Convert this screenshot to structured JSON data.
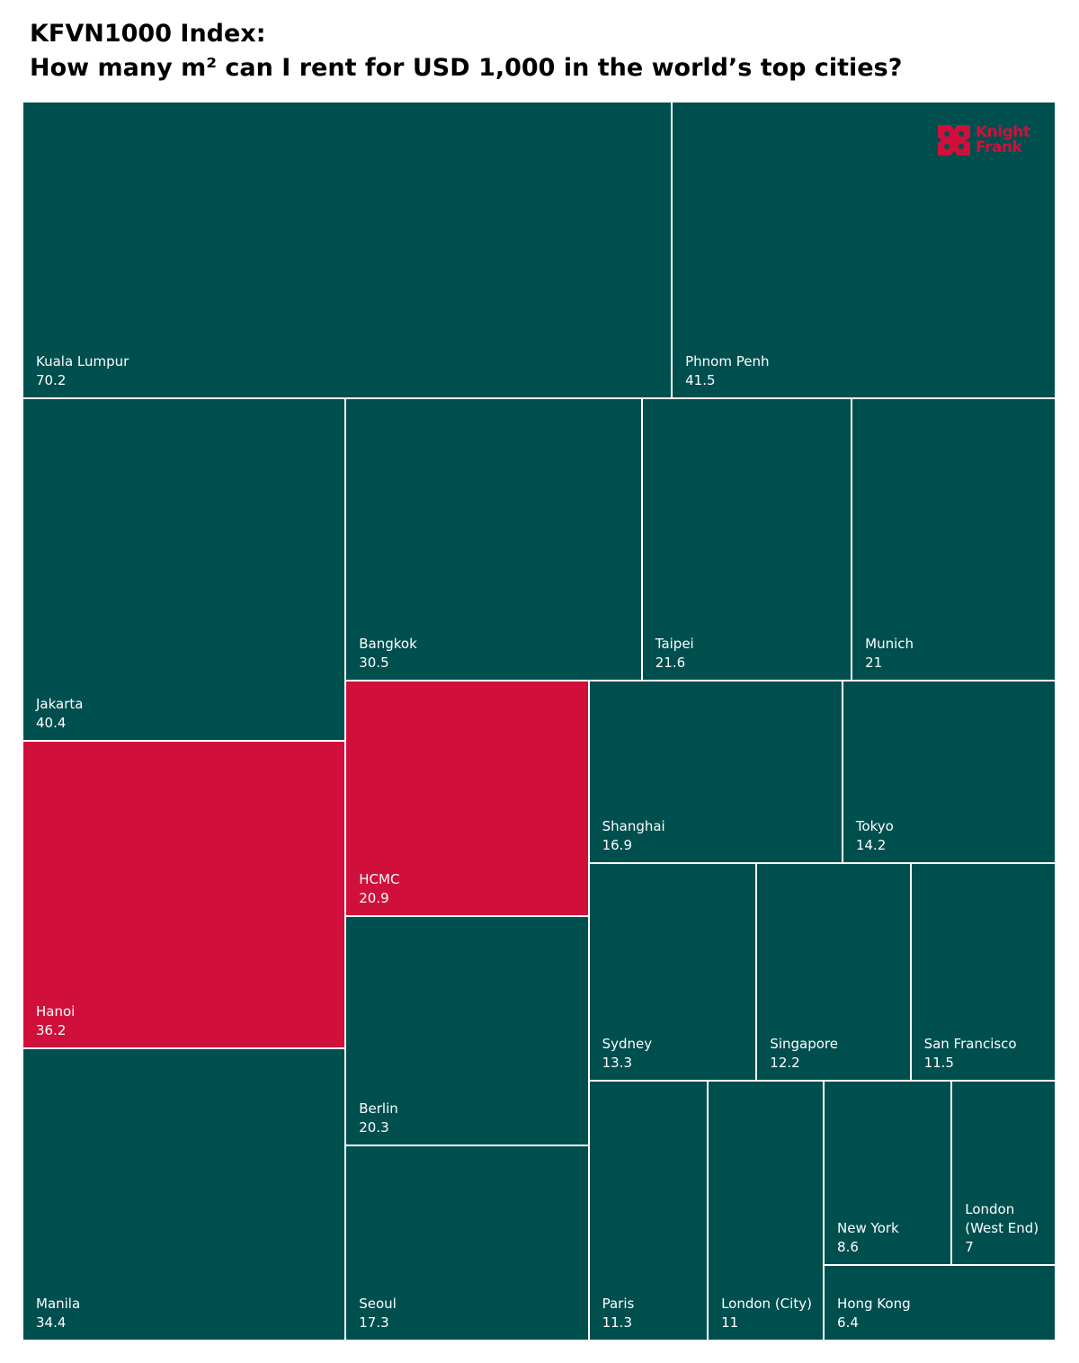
{
  "chart_data": {
    "type": "treemap",
    "title": "KFVN1000 Index:",
    "subtitle": "How many m² can I rent for USD 1,000 in the world’s top cities?",
    "logo": [
      "Knight",
      "Frank"
    ],
    "categories": [
      "Kuala Lumpur",
      "Phnom Penh",
      "Jakarta",
      "Hanoi",
      "Manila",
      "Bangkok",
      "Taipei",
      "Munich",
      "HCMC",
      "Berlin",
      "Seoul",
      "Shanghai",
      "Tokyo",
      "Sydney",
      "Singapore",
      "San Francisco",
      "Paris",
      "London (City)",
      "New York",
      "London (West End)",
      "Hong Kong"
    ],
    "values": [
      70.2,
      41.5,
      40.4,
      36.2,
      34.4,
      30.5,
      21.6,
      21,
      20.9,
      20.3,
      17.3,
      16.9,
      14.2,
      13.3,
      12.2,
      11.5,
      11.3,
      11,
      8.6,
      7,
      6.4
    ],
    "colors": [
      "#004f4f",
      "#004f4f",
      "#004f4f",
      "#d0103a",
      "#004f4f",
      "#004f4f",
      "#004f4f",
      "#004f4f",
      "#d0103a",
      "#004f4f",
      "#004f4f",
      "#004f4f",
      "#004f4f",
      "#004f4f",
      "#004f4f",
      "#004f4f",
      "#004f4f",
      "#004f4f",
      "#004f4f",
      "#004f4f",
      "#004f4f"
    ]
  }
}
